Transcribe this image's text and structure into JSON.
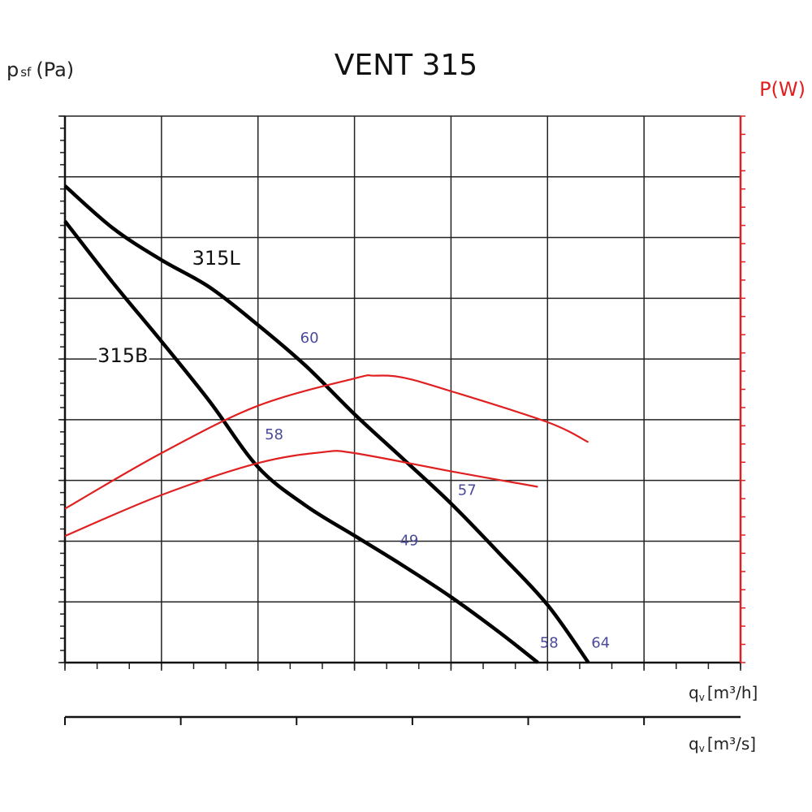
{
  "chart_data": {
    "type": "line",
    "title": "VENT 315",
    "ylabel": "p",
    "ylabel_sub": "sf",
    "ylabel_unit": "(Pa)",
    "y2label": "P(W)",
    "xlabel_main": "q",
    "xlabel_sub": "v",
    "xlabel_unit": "[m³/h]",
    "x2label_unit": "[m³/s]",
    "xlim": [
      0,
      2100
    ],
    "ylim": [
      0,
      900
    ],
    "y2lim": [
      0,
      600
    ],
    "grid": true,
    "x_ticks": [
      "0",
      "300",
      "600",
      "900",
      "1200",
      "1500",
      "1800"
    ],
    "x_tick_values": [
      0,
      300,
      600,
      900,
      1200,
      1500,
      1800
    ],
    "x2_ticks": [
      "0.00",
      "0.10",
      "0.20",
      "0.30",
      "0.40",
      "0.50"
    ],
    "x2_tick_values": [
      0,
      0.1,
      0.2,
      0.3,
      0.4,
      0.5
    ],
    "y_ticks": [
      "0",
      "100",
      "200",
      "300",
      "400",
      "500",
      "600",
      "700",
      "800",
      "900"
    ],
    "y_tick_values": [
      0,
      100,
      200,
      300,
      400,
      500,
      600,
      700,
      800,
      900
    ],
    "y2_ticks": [
      "0",
      "100",
      "200",
      "300",
      "400",
      "500",
      "600"
    ],
    "y2_tick_values": [
      0,
      100,
      200,
      300,
      400,
      500,
      600
    ],
    "colors": {
      "pressure": "#000000",
      "power": "#e02020",
      "labels": "#4a4a9a",
      "right_axis": "#e02020"
    },
    "series": [
      {
        "name": "315L",
        "axis": "left",
        "x": [
          0,
          150,
          300,
          450,
          600,
          750,
          900,
          1050,
          1200,
          1350,
          1500,
          1627
        ],
        "y": [
          785,
          715,
          663,
          618,
          556,
          488,
          409,
          336,
          262,
          180,
          95,
          0
        ]
      },
      {
        "name": "315B",
        "axis": "left",
        "x": [
          0,
          150,
          300,
          450,
          600,
          750,
          900,
          1050,
          1200,
          1350,
          1470
        ],
        "y": [
          727,
          625,
          529,
          430,
          322,
          258,
          209,
          160,
          108,
          50,
          0
        ]
      },
      {
        "axis": "right",
        "x": [
          0,
          300,
          600,
          900,
          960,
          1050,
          1200,
          1500,
          1627
        ],
        "y": [
          169,
          230,
          282,
          312,
          315,
          313,
          298,
          264,
          242
        ]
      },
      {
        "axis": "right",
        "x": [
          0,
          300,
          600,
          800,
          900,
          1200,
          1470
        ],
        "y": [
          139,
          184,
          219,
          231,
          230,
          210,
          193
        ]
      }
    ],
    "annotations": [
      {
        "text": "315L",
        "x": 470,
        "y": 655,
        "kind": "series"
      },
      {
        "text": "315B",
        "x": 180,
        "y": 495,
        "kind": "series"
      },
      {
        "text": "60",
        "x": 760,
        "y": 527,
        "kind": "point"
      },
      {
        "text": "58",
        "x": 650,
        "y": 368,
        "kind": "point"
      },
      {
        "text": "57",
        "x": 1250,
        "y": 276,
        "kind": "point"
      },
      {
        "text": "49",
        "x": 1070,
        "y": 193,
        "kind": "point"
      },
      {
        "text": "58",
        "x": 1505,
        "y": 25,
        "kind": "point"
      },
      {
        "text": "64",
        "x": 1665,
        "y": 25,
        "kind": "point"
      }
    ]
  }
}
